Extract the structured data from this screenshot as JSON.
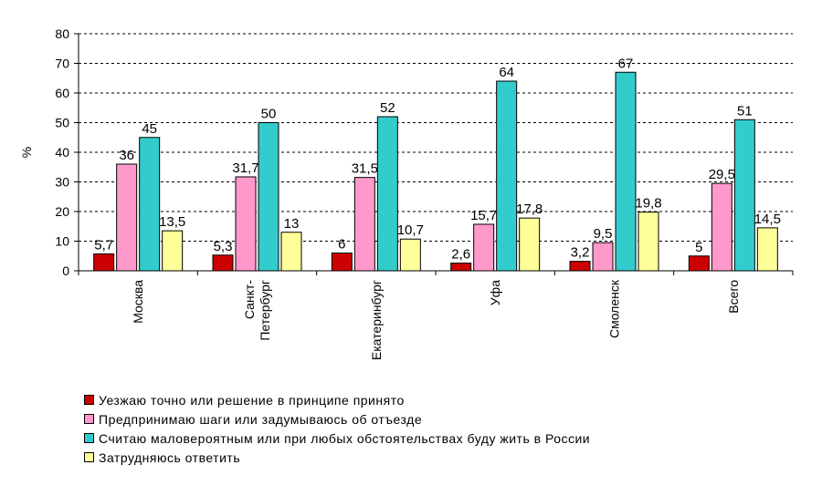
{
  "chart_data": {
    "type": "bar",
    "ylabel": "%",
    "xlabel": "",
    "ylim": [
      0,
      80
    ],
    "yticks": [
      0,
      10,
      20,
      30,
      40,
      50,
      60,
      70,
      80
    ],
    "grid": "horizontal-dashed",
    "legend_position": "bottom",
    "categories": [
      [
        "Москва"
      ],
      [
        "Санкт-",
        "Петербург"
      ],
      [
        "Екатеринбург"
      ],
      [
        "Уфа"
      ],
      [
        "Смоленск"
      ],
      [
        "Всего"
      ]
    ],
    "series": [
      {
        "name": "Уезжаю точно или решение в принципе принято",
        "color": "#cc0000",
        "values": [
          5.7,
          5.3,
          6,
          2.6,
          3.2,
          5
        ],
        "labels": [
          "5,7",
          "5,3",
          "6",
          "2,6",
          "3,2",
          "5"
        ]
      },
      {
        "name": "Предпринимаю шаги или задумываюсь об отъезде",
        "color": "#ff99cc",
        "values": [
          36,
          31.7,
          31.5,
          15.7,
          9.5,
          29.5
        ],
        "labels": [
          "36",
          "31,7",
          "31,5",
          "15,7",
          "9,5",
          "29,5"
        ]
      },
      {
        "name": "Считаю маловероятным или при любых обстоятельствах буду жить в России",
        "color": "#33cccc",
        "values": [
          45,
          50,
          52,
          64,
          67,
          51
        ],
        "labels": [
          "45",
          "50",
          "52",
          "64",
          "67",
          "51"
        ]
      },
      {
        "name": "Затрудняюсь ответить",
        "color": "#ffff99",
        "values": [
          13.5,
          13,
          10.7,
          17.8,
          19.8,
          14.5
        ],
        "labels": [
          "13,5",
          "13",
          "10,7",
          "17,8",
          "19,8",
          "14,5"
        ]
      }
    ]
  }
}
